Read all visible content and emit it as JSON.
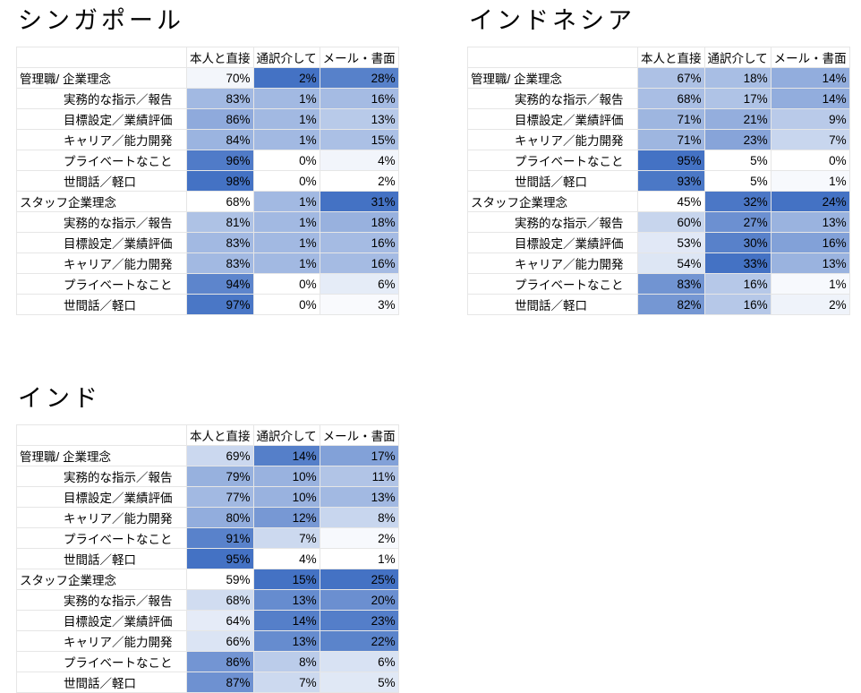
{
  "columns": [
    "本人と直接",
    "通訳介して",
    "メール・書面"
  ],
  "row_labels": [
    {
      "label": "管理職/ 企業理念",
      "group": true
    },
    {
      "label": "実務的な指示／報告",
      "group": false
    },
    {
      "label": "目標設定／業績評価",
      "group": false
    },
    {
      "label": "キャリア／能力開発",
      "group": false
    },
    {
      "label": "プライベートなこと",
      "group": false
    },
    {
      "label": "世間話／軽口",
      "group": false
    },
    {
      "label": "スタッフ企業理念",
      "group": true
    },
    {
      "label": "実務的な指示／報告",
      "group": false
    },
    {
      "label": "目標設定／業績評価",
      "group": false
    },
    {
      "label": "キャリア／能力開発",
      "group": false
    },
    {
      "label": "プライベートなこと",
      "group": false
    },
    {
      "label": "世間話／軽口",
      "group": false
    }
  ],
  "colors": {
    "high": "#4472c4",
    "low": "#ffffff"
  },
  "chart_data": [
    {
      "type": "table",
      "title": "シンガポール",
      "columns": [
        "本人と直接",
        "通訳介して",
        "メール・書面"
      ],
      "values": [
        [
          70,
          2,
          28
        ],
        [
          83,
          1,
          16
        ],
        [
          86,
          1,
          13
        ],
        [
          84,
          1,
          15
        ],
        [
          96,
          0,
          4
        ],
        [
          98,
          0,
          2
        ],
        [
          68,
          1,
          31
        ],
        [
          81,
          1,
          18
        ],
        [
          83,
          1,
          16
        ],
        [
          83,
          1,
          16
        ],
        [
          94,
          0,
          6
        ],
        [
          97,
          0,
          3
        ]
      ]
    },
    {
      "type": "table",
      "title": "インドネシア",
      "columns": [
        "本人と直接",
        "通訳介して",
        "メール・書面"
      ],
      "values": [
        [
          67,
          18,
          14
        ],
        [
          68,
          17,
          14
        ],
        [
          71,
          21,
          9
        ],
        [
          71,
          23,
          7
        ],
        [
          95,
          5,
          0
        ],
        [
          93,
          5,
          1
        ],
        [
          45,
          32,
          24
        ],
        [
          60,
          27,
          13
        ],
        [
          53,
          30,
          16
        ],
        [
          54,
          33,
          13
        ],
        [
          83,
          16,
          1
        ],
        [
          82,
          16,
          2
        ]
      ]
    },
    {
      "type": "table",
      "title": "インド",
      "columns": [
        "本人と直接",
        "通訳介して",
        "メール・書面"
      ],
      "values": [
        [
          69,
          14,
          17
        ],
        [
          79,
          10,
          11
        ],
        [
          77,
          10,
          13
        ],
        [
          80,
          12,
          8
        ],
        [
          91,
          7,
          2
        ],
        [
          95,
          4,
          1
        ],
        [
          59,
          15,
          25
        ],
        [
          68,
          13,
          20
        ],
        [
          64,
          14,
          23
        ],
        [
          66,
          13,
          22
        ],
        [
          86,
          8,
          6
        ],
        [
          87,
          7,
          5
        ]
      ]
    }
  ]
}
